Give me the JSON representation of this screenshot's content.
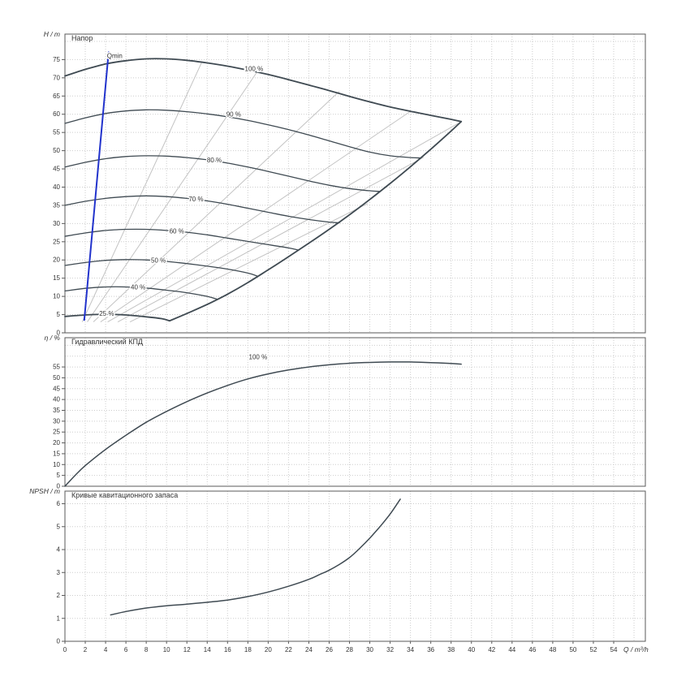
{
  "axis": {
    "x_label": "Q / m³/h",
    "x_min": 0,
    "x_max": 54,
    "x_tick_step": 2
  },
  "colors": {
    "curve": "#3f4a52",
    "grid": "#cdcdcd",
    "axis": "#5a5a5a",
    "iso": "#c3c3c3",
    "qmin": "#2233cc",
    "text": "#333333"
  },
  "chart_data": [
    {
      "type": "line",
      "id": "head",
      "title": "Напор",
      "ylabel": "H / m",
      "ylim": [
        0,
        82
      ],
      "ytick_step": 5,
      "ytick_max_label": 75,
      "series": [
        {
          "id": "25",
          "name": "25 %",
          "width": 1.8,
          "points": [
            [
              0,
              4.5
            ],
            [
              2,
              4.9
            ],
            [
              4,
              5.1
            ],
            [
              6,
              4.9
            ],
            [
              8,
              4.4
            ],
            [
              9.5,
              3.9
            ],
            [
              10.3,
              3.3
            ]
          ]
        },
        {
          "id": "40",
          "name": "40 %",
          "width": 1.3,
          "points": [
            [
              0,
              11.5
            ],
            [
              2,
              12.2
            ],
            [
              4,
              12.6
            ],
            [
              6,
              12.6
            ],
            [
              8,
              12.3
            ],
            [
              10,
              11.7
            ],
            [
              12,
              11.0
            ],
            [
              14,
              10.0
            ],
            [
              15,
              9.2
            ]
          ]
        },
        {
          "id": "50",
          "name": "50 %",
          "width": 1.3,
          "points": [
            [
              0,
              18.5
            ],
            [
              2,
              19.3
            ],
            [
              4,
              19.9
            ],
            [
              6,
              20.1
            ],
            [
              8,
              20.0
            ],
            [
              10,
              19.6
            ],
            [
              12,
              19.0
            ],
            [
              14,
              18.3
            ],
            [
              16,
              17.5
            ],
            [
              18,
              16.4
            ],
            [
              19,
              15.5
            ]
          ]
        },
        {
          "id": "60",
          "name": "60 %",
          "width": 1.3,
          "points": [
            [
              0,
              26.5
            ],
            [
              2,
              27.4
            ],
            [
              4,
              28.1
            ],
            [
              6,
              28.4
            ],
            [
              8,
              28.4
            ],
            [
              10,
              28.1
            ],
            [
              12,
              27.6
            ],
            [
              14,
              26.9
            ],
            [
              16,
              26.0
            ],
            [
              18,
              25.1
            ],
            [
              20,
              24.2
            ],
            [
              22,
              23.3
            ],
            [
              23,
              22.7
            ]
          ]
        },
        {
          "id": "70",
          "name": "70 %",
          "width": 1.3,
          "points": [
            [
              0,
              35.0
            ],
            [
              2,
              36.1
            ],
            [
              4,
              36.9
            ],
            [
              6,
              37.4
            ],
            [
              8,
              37.6
            ],
            [
              10,
              37.4
            ],
            [
              12,
              36.9
            ],
            [
              14,
              36.2
            ],
            [
              16,
              35.3
            ],
            [
              18,
              34.2
            ],
            [
              20,
              33.1
            ],
            [
              22,
              32.0
            ],
            [
              24,
              31.1
            ],
            [
              26,
              30.4
            ],
            [
              27,
              30.2
            ]
          ]
        },
        {
          "id": "80",
          "name": "80 %",
          "width": 1.3,
          "points": [
            [
              0,
              45.5
            ],
            [
              2,
              46.8
            ],
            [
              4,
              47.8
            ],
            [
              6,
              48.4
            ],
            [
              8,
              48.6
            ],
            [
              10,
              48.5
            ],
            [
              12,
              48.1
            ],
            [
              14,
              47.5
            ],
            [
              16,
              46.6
            ],
            [
              18,
              45.5
            ],
            [
              20,
              44.3
            ],
            [
              22,
              43.0
            ],
            [
              24,
              41.7
            ],
            [
              26,
              40.5
            ],
            [
              28,
              39.6
            ],
            [
              30,
              39.0
            ],
            [
              31,
              38.8
            ]
          ]
        },
        {
          "id": "90",
          "name": "90 %",
          "width": 1.3,
          "points": [
            [
              0,
              57.5
            ],
            [
              2,
              59.0
            ],
            [
              4,
              60.2
            ],
            [
              6,
              60.9
            ],
            [
              8,
              61.2
            ],
            [
              10,
              61.1
            ],
            [
              12,
              60.7
            ],
            [
              14,
              60.1
            ],
            [
              16,
              59.3
            ],
            [
              18,
              58.3
            ],
            [
              20,
              57.1
            ],
            [
              22,
              55.8
            ],
            [
              24,
              54.3
            ],
            [
              26,
              52.7
            ],
            [
              28,
              51.1
            ],
            [
              30,
              49.6
            ],
            [
              32,
              48.6
            ],
            [
              34,
              48.1
            ],
            [
              35,
              48.0
            ]
          ]
        },
        {
          "id": "100",
          "name": "100 %",
          "width": 1.8,
          "points": [
            [
              0,
              70.5
            ],
            [
              2,
              72.3
            ],
            [
              4,
              73.8
            ],
            [
              6,
              74.7
            ],
            [
              8,
              75.2
            ],
            [
              10,
              75.2
            ],
            [
              12,
              74.8
            ],
            [
              14,
              74.1
            ],
            [
              16,
              73.2
            ],
            [
              18,
              72.1
            ],
            [
              20,
              70.9
            ],
            [
              22,
              69.5
            ],
            [
              24,
              68.0
            ],
            [
              26,
              66.5
            ],
            [
              28,
              64.9
            ],
            [
              30,
              63.4
            ],
            [
              32,
              62.0
            ],
            [
              34,
              60.8
            ],
            [
              36,
              59.7
            ],
            [
              38,
              58.6
            ],
            [
              39,
              58.0
            ]
          ]
        },
        {
          "id": "max-flow-limit",
          "name": "max flow limit",
          "width": 1.8,
          "points": [
            [
              10.3,
              3.3
            ],
            [
              12,
              5.3
            ],
            [
              14,
              7.8
            ],
            [
              16,
              10.6
            ],
            [
              18,
              13.8
            ],
            [
              20,
              17.3
            ],
            [
              22,
              20.9
            ],
            [
              24,
              24.6
            ],
            [
              26,
              28.4
            ],
            [
              28,
              32.4
            ],
            [
              30,
              36.6
            ],
            [
              32,
              41.0
            ],
            [
              34,
              45.6
            ],
            [
              36,
              50.4
            ],
            [
              38,
              55.4
            ],
            [
              39,
              58.0
            ]
          ]
        },
        {
          "id": "qmin",
          "name": "Qmin",
          "color": "#2233cc",
          "width": 2,
          "points": [
            [
              1.9,
              3.5
            ],
            [
              4.3,
              77.0
            ]
          ]
        }
      ],
      "iso_lines": [
        [
          [
            1.7,
            3.0
          ],
          [
            13.5,
            74.5
          ]
        ],
        [
          [
            2.2,
            3.0
          ],
          [
            19.0,
            72.0
          ]
        ],
        [
          [
            2.8,
            3.0
          ],
          [
            27.0,
            66.3
          ]
        ],
        [
          [
            3.5,
            3.0
          ],
          [
            34.0,
            60.8
          ]
        ],
        [
          [
            4.2,
            3.0
          ],
          [
            38.7,
            57.5
          ]
        ],
        [
          [
            5.2,
            3.0
          ],
          [
            35.3,
            48.2
          ]
        ],
        [
          [
            6.4,
            3.0
          ],
          [
            29.8,
            35.5
          ]
        ]
      ],
      "labels": [
        {
          "text": "Qmin",
          "x": 4.9,
          "y": 76.0,
          "color": "#2233cc"
        },
        {
          "text": "100 %",
          "x": 18.6,
          "y": 72.4
        },
        {
          "text": "90 %",
          "x": 16.6,
          "y": 59.9
        },
        {
          "text": "80 %",
          "x": 14.7,
          "y": 47.3
        },
        {
          "text": "70 %",
          "x": 12.9,
          "y": 36.6
        },
        {
          "text": "60 %",
          "x": 11.0,
          "y": 27.9
        },
        {
          "text": "50 %",
          "x": 9.2,
          "y": 19.8
        },
        {
          "text": "40 %",
          "x": 7.2,
          "y": 12.5
        },
        {
          "text": "25 %",
          "x": 4.1,
          "y": 5.2
        }
      ]
    },
    {
      "type": "line",
      "id": "efficiency",
      "title": "Гидравлический КПД",
      "ylabel": "η / %",
      "ylim": [
        0,
        68.5
      ],
      "ytick_step": 5,
      "ytick_max_label": 55,
      "series": [
        {
          "id": "eff-100",
          "name": "100 %",
          "width": 1.5,
          "points": [
            [
              0,
              0
            ],
            [
              1,
              5
            ],
            [
              2,
              9.5
            ],
            [
              4,
              17
            ],
            [
              6,
              23.5
            ],
            [
              8,
              29.5
            ],
            [
              10,
              34.5
            ],
            [
              12,
              39
            ],
            [
              14,
              43
            ],
            [
              16,
              46.5
            ],
            [
              18,
              49.5
            ],
            [
              20,
              51.8
            ],
            [
              22,
              53.6
            ],
            [
              24,
              55
            ],
            [
              26,
              56
            ],
            [
              28,
              56.7
            ],
            [
              30,
              57.1
            ],
            [
              32,
              57.3
            ],
            [
              34,
              57.3
            ],
            [
              36,
              57.0
            ],
            [
              38,
              56.6
            ],
            [
              39,
              56.3
            ]
          ]
        }
      ],
      "labels": [
        {
          "text": "100 %",
          "x": 19.0,
          "y": 59.5
        }
      ]
    },
    {
      "type": "line",
      "id": "npsh",
      "title": "Кривые кавитационного запаса",
      "ylabel": "NPSH / m",
      "ylim": [
        0,
        6.55
      ],
      "ytick_step": 1,
      "ytick_max_label": 6,
      "series": [
        {
          "id": "npsh",
          "name": "NPSH",
          "width": 1.5,
          "points": [
            [
              4.5,
              1.15
            ],
            [
              6,
              1.3
            ],
            [
              8,
              1.45
            ],
            [
              10,
              1.55
            ],
            [
              12,
              1.62
            ],
            [
              14,
              1.7
            ],
            [
              16,
              1.8
            ],
            [
              18,
              1.95
            ],
            [
              20,
              2.15
            ],
            [
              22,
              2.4
            ],
            [
              24,
              2.7
            ],
            [
              25,
              2.9
            ],
            [
              26,
              3.1
            ],
            [
              27,
              3.35
            ],
            [
              28,
              3.65
            ],
            [
              29,
              4.05
            ],
            [
              30,
              4.5
            ],
            [
              31,
              5.0
            ],
            [
              32,
              5.55
            ],
            [
              33,
              6.2
            ]
          ]
        }
      ],
      "labels": []
    }
  ]
}
